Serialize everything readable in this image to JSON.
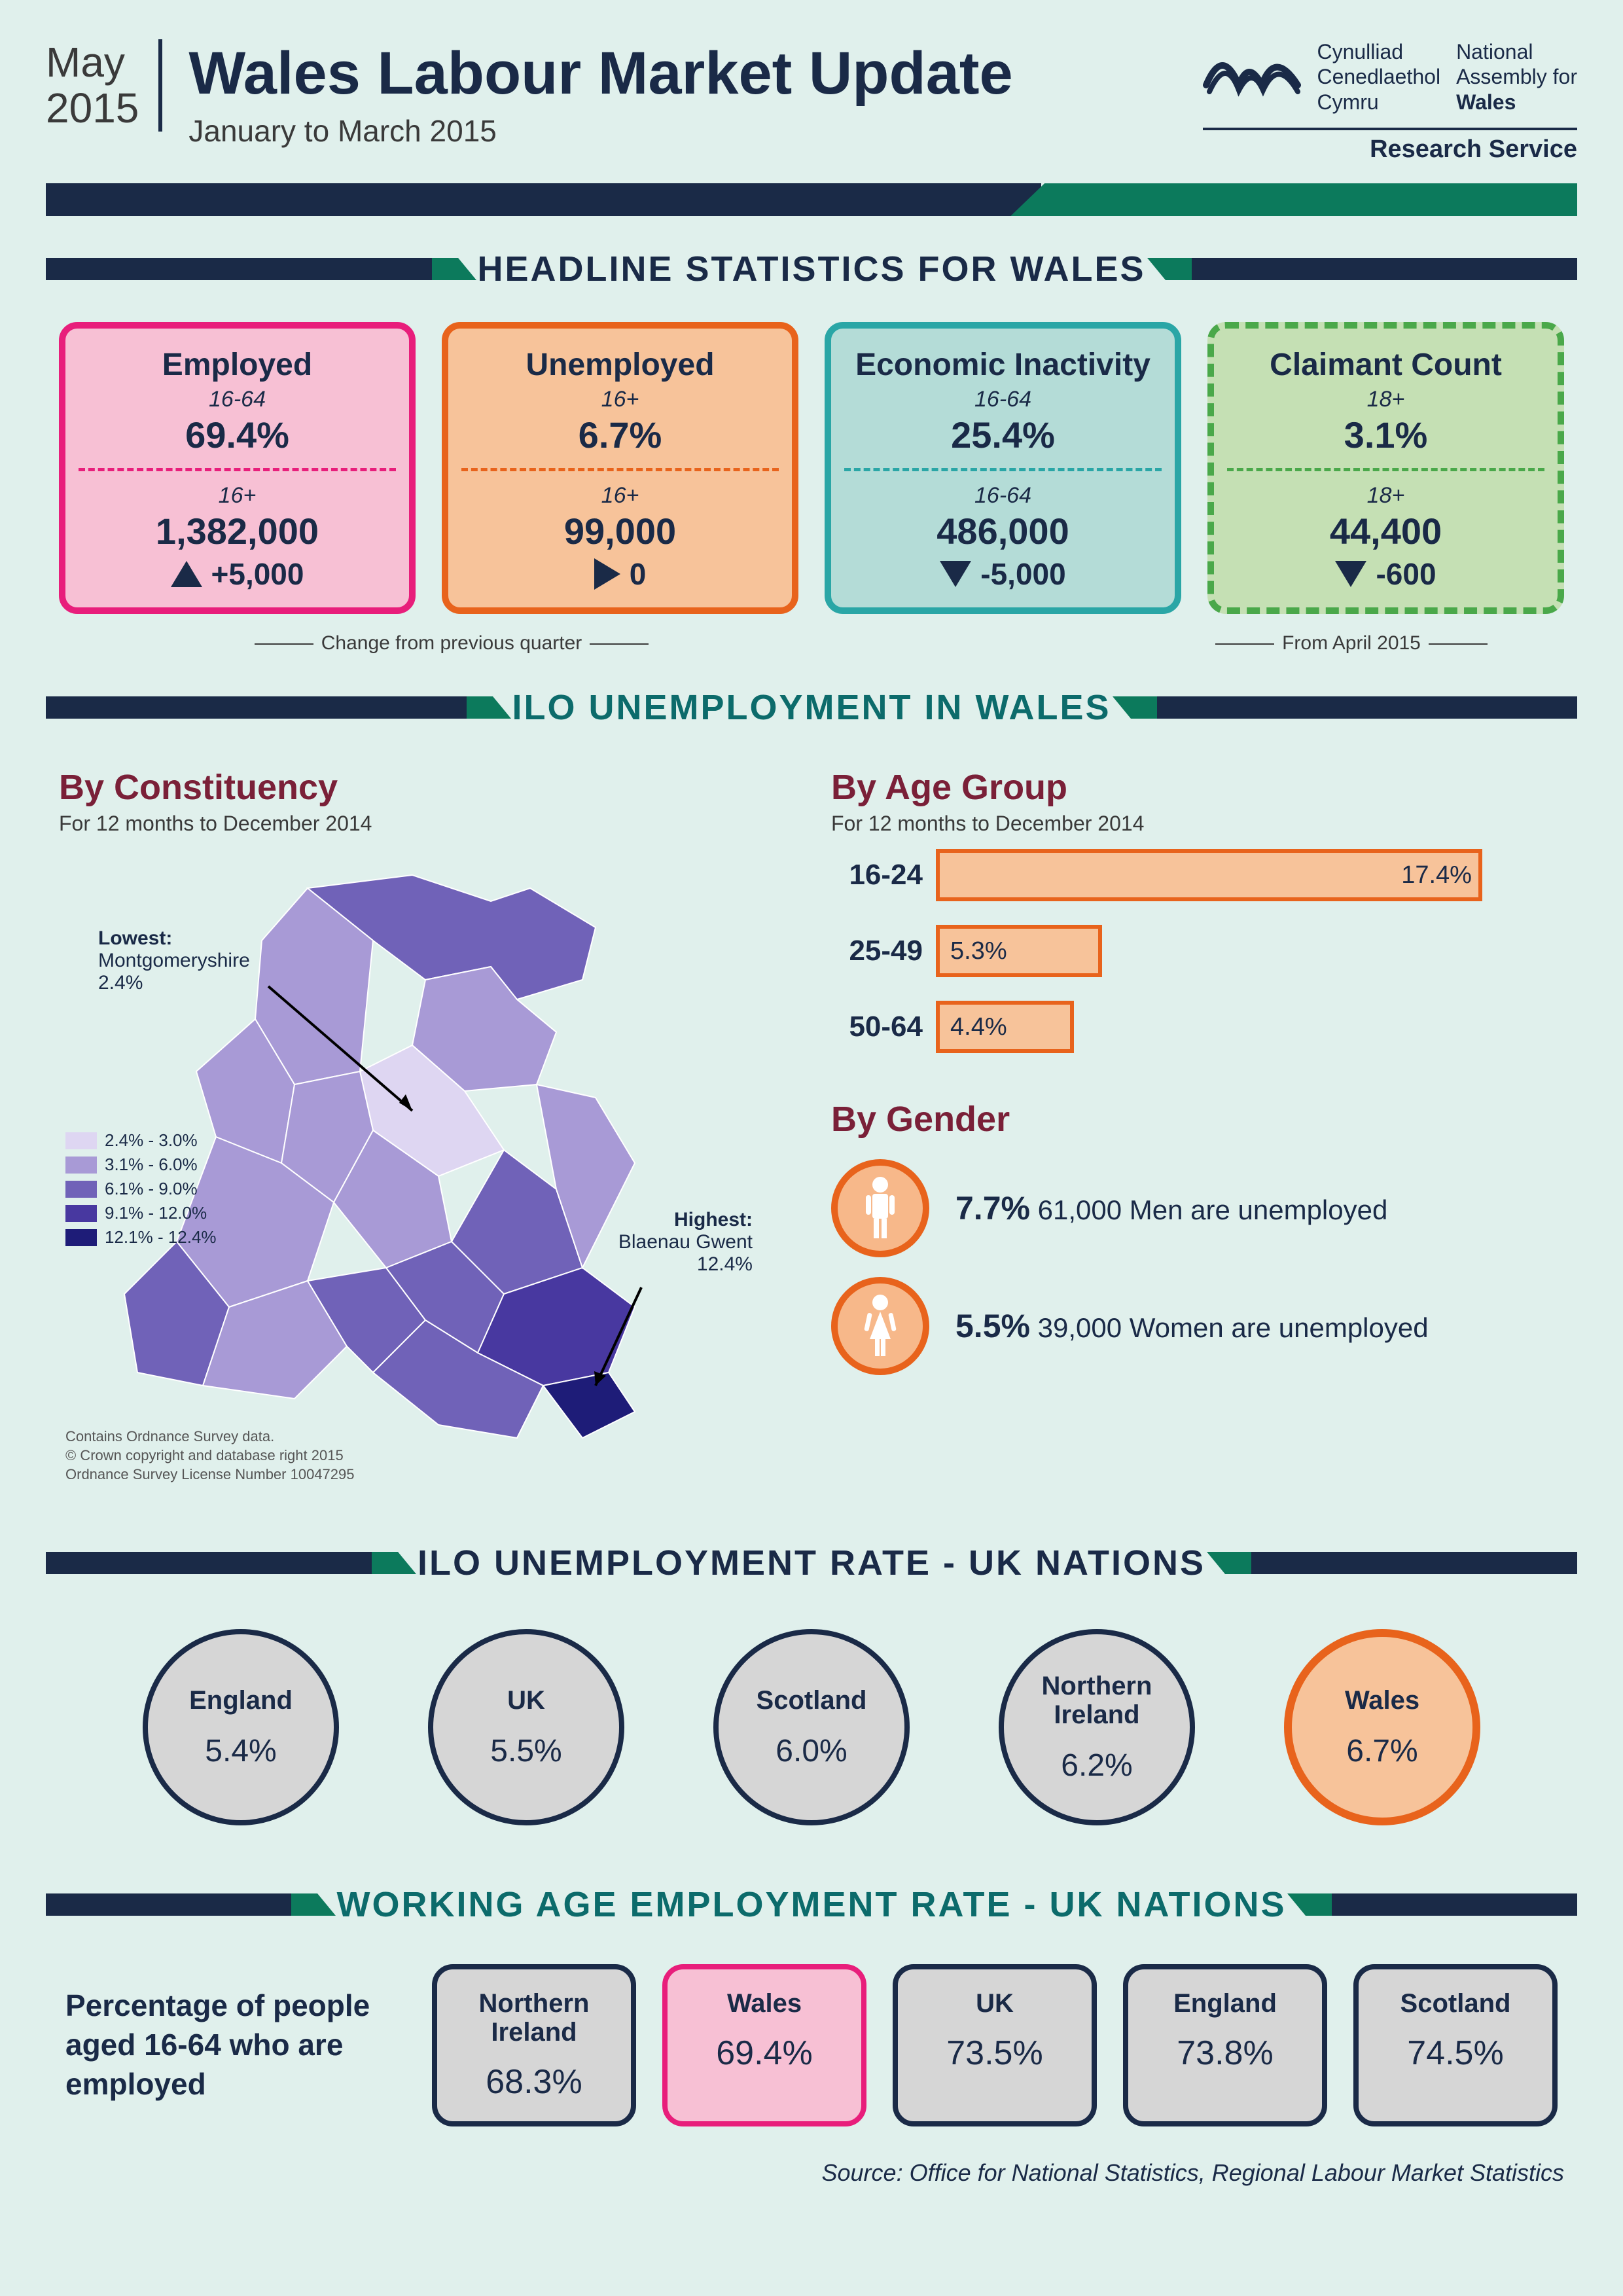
{
  "header": {
    "month": "May",
    "year": "2015",
    "title": "Wales Labour Market Update",
    "subtitle": "January to March 2015",
    "org_cy1": "Cynulliad",
    "org_cy2": "Cenedlaethol",
    "org_cy3": "Cymru",
    "org_en1": "National",
    "org_en2": "Assembly for",
    "org_en3": "Wales",
    "research": "Research Service"
  },
  "sections": {
    "headline": "HEADLINE STATISTICS FOR WALES",
    "ilo_wales": "ILO UNEMPLOYMENT IN WALES",
    "ilo_uk": "ILO UNEMPLOYMENT RATE - UK NATIONS",
    "working_age": "WORKING AGE EMPLOYMENT RATE - UK NATIONS"
  },
  "colors": {
    "navy": "#1a2a47",
    "teal": "#0c7a5c",
    "heading_ilo": "#0c6b6b"
  },
  "cards": [
    {
      "title": "Employed",
      "age1": "16-64",
      "pct": "69.4%",
      "age2": "16+",
      "count": "1,382,000",
      "arrow": "up",
      "delta": "+5,000",
      "border": "#e81e7b",
      "bg": "#f7c0d4",
      "dashed": false
    },
    {
      "title": "Unemployed",
      "age1": "16+",
      "pct": "6.7%",
      "age2": "16+",
      "count": "99,000",
      "arrow": "right",
      "delta": "0",
      "border": "#e8631c",
      "bg": "#f7c39a",
      "dashed": false
    },
    {
      "title": "Economic Inactivity",
      "age1": "16-64",
      "pct": "25.4%",
      "age2": "16-64",
      "count": "486,000",
      "arrow": "down",
      "delta": "-5,000",
      "border": "#2aa6a6",
      "bg": "#b4dcd7",
      "dashed": false
    },
    {
      "title": "Claimant Count",
      "age1": "18+",
      "pct": "3.1%",
      "age2": "18+",
      "count": "44,400",
      "arrow": "down",
      "delta": "-600",
      "border": "#4aa84a",
      "bg": "#c5e0b4",
      "dashed": true
    }
  ],
  "card_notes": {
    "left": "Change from previous quarter",
    "right": "From April 2015"
  },
  "constituency": {
    "title": "By Constituency",
    "caption": "For 12 months to  December 2014",
    "lowest_label": "Lowest:",
    "lowest_name": "Montgomeryshire",
    "lowest_val": "2.4%",
    "highest_label": "Highest:",
    "highest_name": "Blaenau Gwent",
    "highest_val": "12.4%",
    "legend": [
      {
        "range": "2.4% - 3.0%",
        "color": "#ded6f2"
      },
      {
        "range": "3.1% - 6.0%",
        "color": "#a89ad6"
      },
      {
        "range": "6.1% - 9.0%",
        "color": "#7062b8"
      },
      {
        "range": "9.1% - 12.0%",
        "color": "#4838a0"
      },
      {
        "range": "12.1% - 12.4%",
        "color": "#1e1c78"
      }
    ],
    "credit1": "Contains Ordnance Survey data.",
    "credit2": "© Crown copyright and database right 2015",
    "credit3": "Ordnance Survey License Number 10047295"
  },
  "age_group": {
    "title": "By Age Group",
    "caption": "For 12 months to  December 2014",
    "bar_border": "#e8631c",
    "bar_fill": "#f7c39a",
    "max": 20,
    "bars": [
      {
        "label": "16-24",
        "pct": 17.4,
        "text": "17.4%"
      },
      {
        "label": "25-49",
        "pct": 5.3,
        "text": "5.3%"
      },
      {
        "label": "50-64",
        "pct": 4.4,
        "text": "4.4%"
      }
    ]
  },
  "gender": {
    "title": "By Gender",
    "ring": "#e8631c",
    "fill": "#f7c39a",
    "men_pct": "7.7%",
    "men_text": "61,000 Men are unemployed",
    "women_pct": "5.5%",
    "women_text": "39,000 Women are unemployed"
  },
  "ilo_nations": {
    "highlight_border": "#e8631c",
    "highlight_bg": "#f7c39a",
    "items": [
      {
        "name": "England",
        "val": "5.4%",
        "highlight": false
      },
      {
        "name": "UK",
        "val": "5.5%",
        "highlight": false
      },
      {
        "name": "Scotland",
        "val": "6.0%",
        "highlight": false
      },
      {
        "name": "Northern\nIreland",
        "val": "6.2%",
        "highlight": false
      },
      {
        "name": "Wales",
        "val": "6.7%",
        "highlight": true
      }
    ]
  },
  "employment_nations": {
    "desc": "Percentage of people aged 16-64 who are employed",
    "highlight_border": "#e81e7b",
    "highlight_bg": "#f7c0d4",
    "items": [
      {
        "name": "Northern\nIreland",
        "val": "68.3%",
        "highlight": false
      },
      {
        "name": "Wales",
        "val": "69.4%",
        "highlight": true
      },
      {
        "name": "UK",
        "val": "73.5%",
        "highlight": false
      },
      {
        "name": "England",
        "val": "73.8%",
        "highlight": false
      },
      {
        "name": "Scotland",
        "val": "74.5%",
        "highlight": false
      }
    ]
  },
  "source": "Source: Office for National Statistics, Regional Labour Market Statistics"
}
